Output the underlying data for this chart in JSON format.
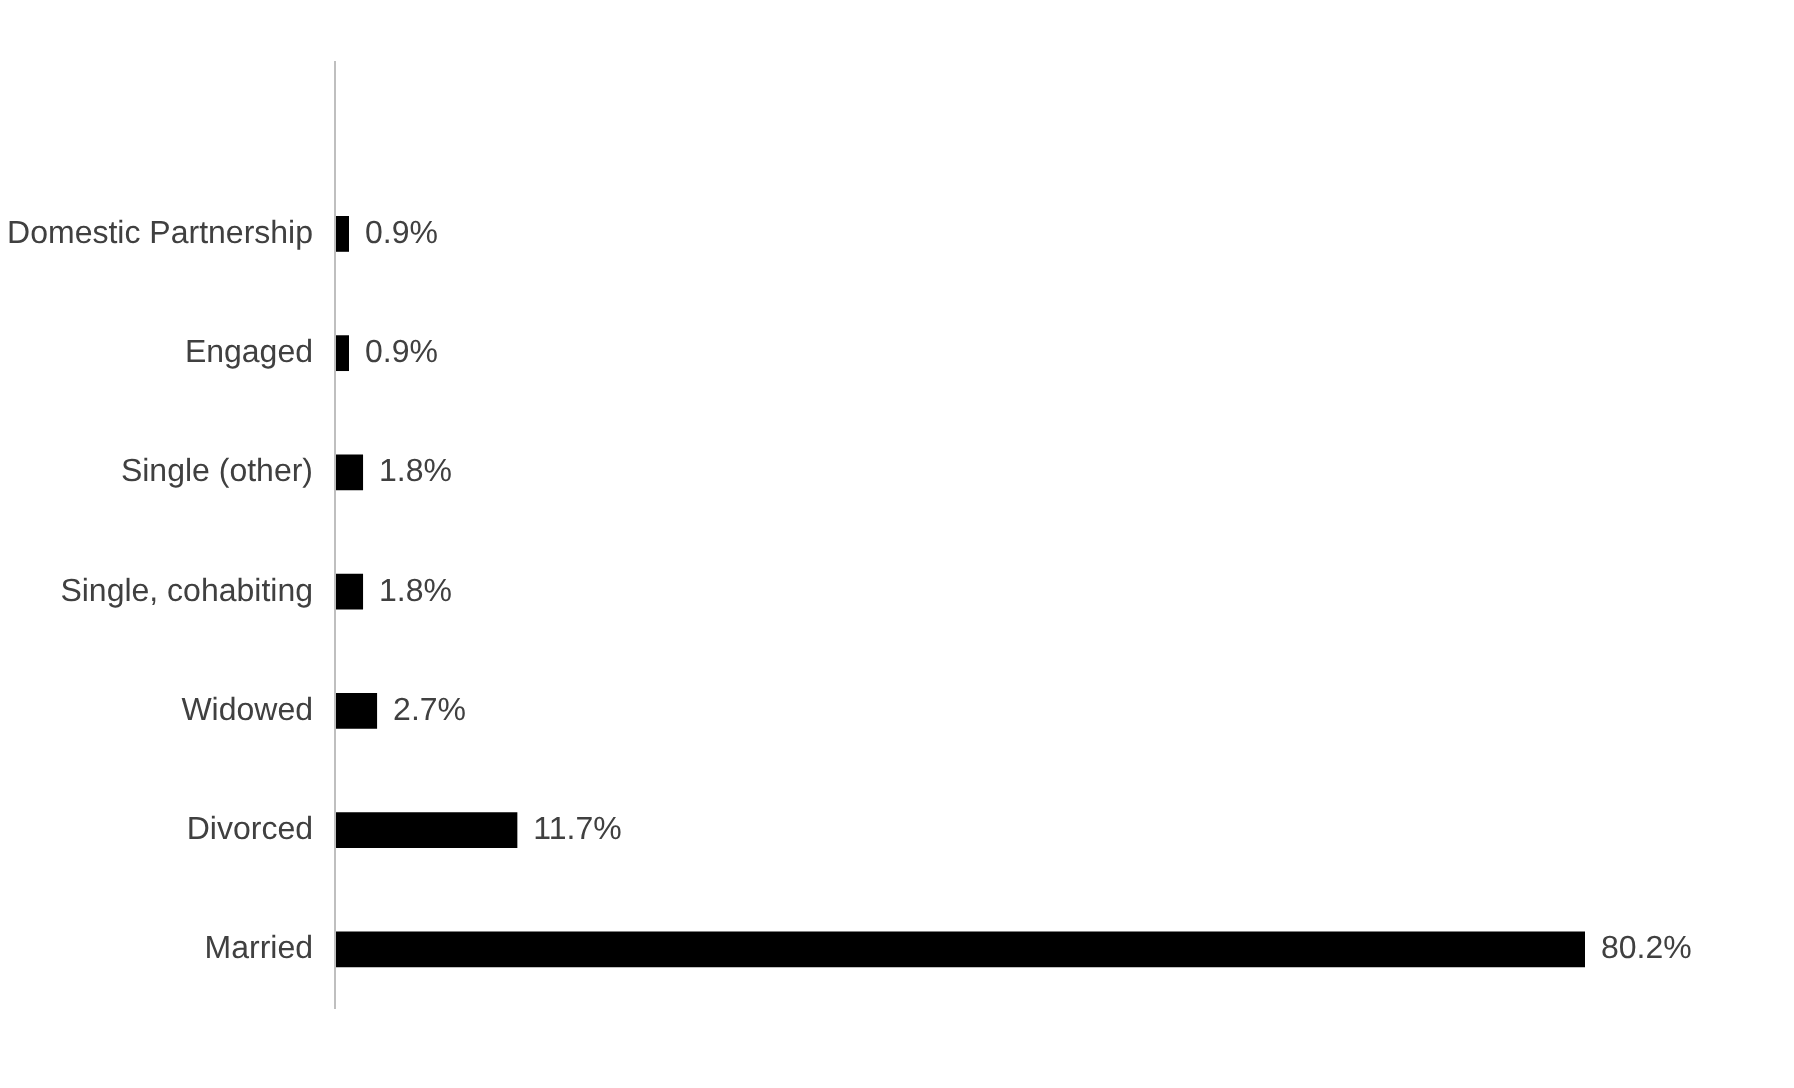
{
  "chart_data": {
    "type": "bar",
    "orientation": "horizontal",
    "categories": [
      "Domestic Partnership",
      "Engaged",
      "Single (other)",
      "Single, cohabiting",
      "Widowed",
      "Divorced",
      "Married"
    ],
    "values": [
      0.9,
      0.9,
      1.8,
      1.8,
      2.7,
      11.7,
      80.2
    ],
    "value_labels": [
      "0.9%",
      "0.9%",
      "1.8%",
      "1.8%",
      "2.7%",
      "11.7%",
      "80.2%"
    ],
    "color": "#000000",
    "grid": false
  }
}
